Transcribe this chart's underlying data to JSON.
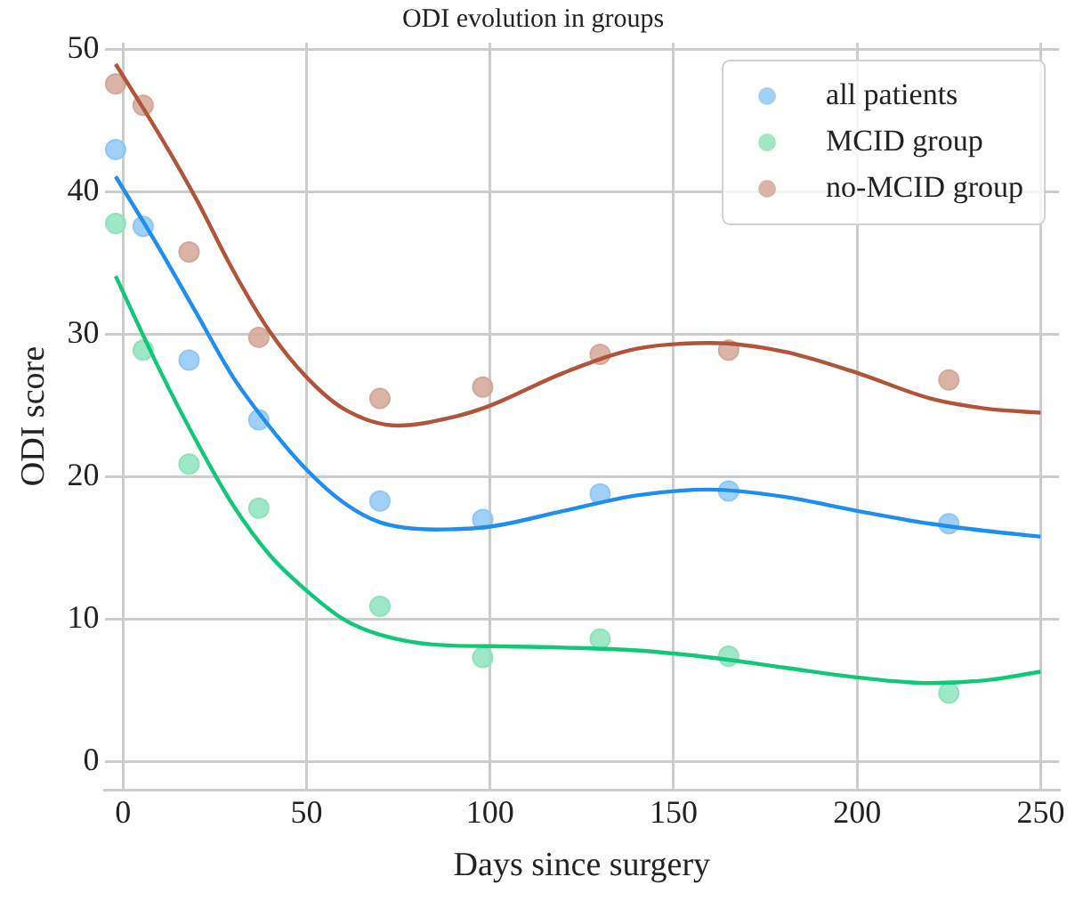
{
  "chart_data": {
    "type": "scatter",
    "title": "ODI evolution in groups",
    "xlabel": "Days since surgery",
    "ylabel": "ODI score",
    "x": [
      -2,
      5.5,
      18,
      37,
      70,
      98,
      130,
      165,
      225
    ],
    "series": [
      {
        "name": "all patients",
        "color": "#8fc8f5",
        "values": [
          43,
          37.6,
          28.2,
          24,
          18.3,
          17,
          18.8,
          19,
          16.7
        ]
      },
      {
        "name": "MCID group",
        "color": "#8de3bd",
        "values": [
          37.8,
          28.9,
          20.9,
          17.8,
          10.9,
          7.3,
          8.6,
          7.4,
          4.8
        ]
      },
      {
        "name": "no-MCID group",
        "color": "#d4a898",
        "values": [
          47.6,
          46.1,
          35.8,
          29.8,
          25.5,
          26.3,
          28.6,
          28.9,
          26.8
        ]
      },
      {
        "type": "line",
        "marker": "none",
        "color": "#1e8ff0",
        "x": [
          -2,
          10,
          20,
          30,
          40,
          50,
          60,
          70,
          85,
          100,
          120,
          140,
          160,
          180,
          200,
          220,
          235,
          250
        ],
        "values": [
          41.1,
          36,
          31.5,
          27,
          23.5,
          20.5,
          18.2,
          16.8,
          16.3,
          16.5,
          17.6,
          18.7,
          19.1,
          18.6,
          17.6,
          16.7,
          16.2,
          15.8
        ]
      },
      {
        "type": "line",
        "marker": "none",
        "color": "#10c878",
        "x": [
          -2,
          10,
          20,
          30,
          40,
          50,
          60,
          70,
          85,
          100,
          120,
          140,
          160,
          180,
          200,
          220,
          235,
          250
        ],
        "values": [
          34.1,
          27.5,
          22.5,
          18,
          14.5,
          12,
          10,
          8.9,
          8.2,
          8.1,
          8,
          7.8,
          7.3,
          6.6,
          5.9,
          5.5,
          5.7,
          6.3
        ]
      },
      {
        "type": "line",
        "marker": "none",
        "color": "#b0553a",
        "x": [
          -2,
          10,
          20,
          30,
          40,
          50,
          60,
          75,
          90,
          100,
          120,
          140,
          160,
          180,
          200,
          220,
          235,
          250
        ],
        "values": [
          49,
          44,
          39.5,
          34.5,
          30.2,
          27,
          24.8,
          23.6,
          24.2,
          25,
          27.3,
          29,
          29.4,
          28.8,
          27.3,
          25.5,
          24.8,
          24.5
        ]
      }
    ],
    "xlim": [
      -5,
      255
    ],
    "xticks": [
      0,
      50,
      100,
      150,
      200,
      250
    ],
    "ylim": [
      -2,
      50.5
    ],
    "yticks": [
      0,
      10,
      20,
      30,
      40,
      50
    ],
    "grid": true,
    "legend": "top right",
    "marker": "circle",
    "line_style": "solid"
  }
}
